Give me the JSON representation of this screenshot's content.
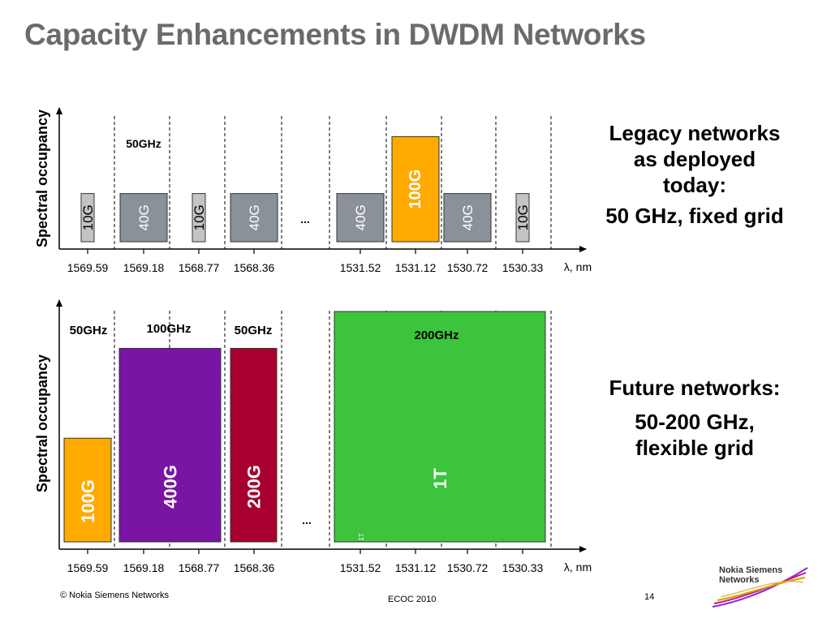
{
  "title": "Capacity Enhancements in DWDM Networks",
  "y_axis_label": "Spectral occupancy",
  "x_axis_unit": "λ, nm",
  "wavelengths": [
    "1569.59",
    "1569.18",
    "1568.77",
    "1568.36",
    "1531.52",
    "1531.12",
    "1530.72",
    "1530.33"
  ],
  "ellipsis": "...",
  "legacy": {
    "spacing_label": "50GHz",
    "channels": [
      {
        "label": "10G",
        "color": "#c4c4c4",
        "text_color": "#000000",
        "level": 0.33
      },
      {
        "label": "40G",
        "color": "#8a9199",
        "text_color": "#ffffff",
        "level": 0.33
      },
      {
        "label": "10G",
        "color": "#c4c4c4",
        "text_color": "#000000",
        "level": 0.33
      },
      {
        "label": "40G",
        "color": "#8a9199",
        "text_color": "#ffffff",
        "level": 0.33
      },
      {
        "label": "40G",
        "color": "#8a9199",
        "text_color": "#ffffff",
        "level": 0.33
      },
      {
        "label": "100G",
        "color": "#ffaa00",
        "text_color": "#ffffff",
        "level": 0.72
      },
      {
        "label": "40G",
        "color": "#8a9199",
        "text_color": "#ffffff",
        "level": 0.33
      },
      {
        "label": "10G",
        "color": "#c4c4c4",
        "text_color": "#000000",
        "level": 0.33
      }
    ],
    "description": [
      "Legacy networks",
      "as deployed",
      "today:"
    ],
    "grid": "50 GHz, fixed grid"
  },
  "future": {
    "channels": [
      {
        "label": "100G",
        "spacing": "50GHz",
        "color": "#ffaa00",
        "level": 0.45
      },
      {
        "label": "400G",
        "spacing": "100GHz",
        "color": "#7a14a3",
        "level": 0.84
      },
      {
        "label": "200G",
        "spacing": "50GHz",
        "color": "#a8002e",
        "level": 0.84
      },
      {
        "label": "1T",
        "spacing": "200GHz",
        "color": "#3cc43c",
        "level": 1.0
      }
    ],
    "small_mark": "1T",
    "description": "Future networks:",
    "grid": [
      "50-200 GHz,",
      "flexible grid"
    ]
  },
  "footer": {
    "copyright": "© Nokia Siemens Networks",
    "event": "ECOC  2010",
    "page": "14"
  },
  "logo": [
    "Nokia Siemens",
    "Networks"
  ]
}
